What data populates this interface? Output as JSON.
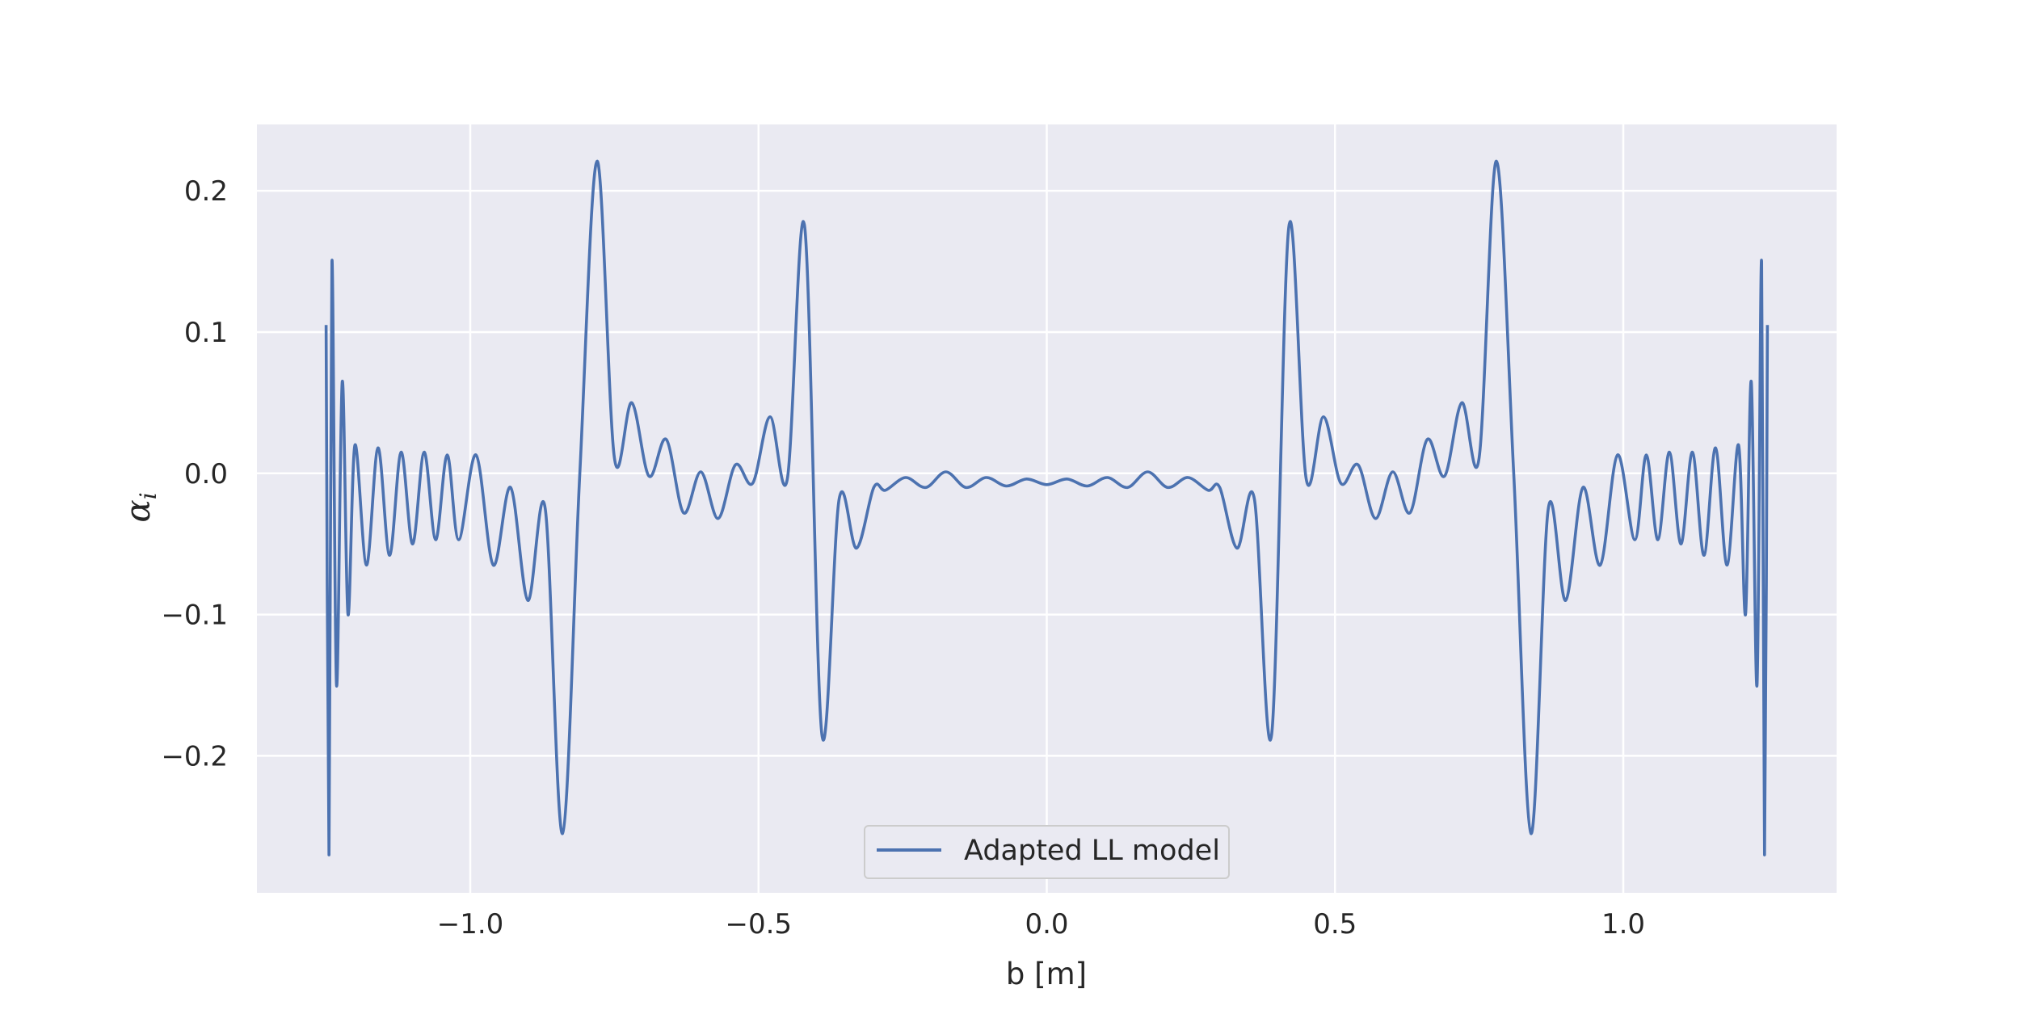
{
  "chart_data": {
    "type": "line",
    "title": "",
    "xlabel": "b [m]",
    "ylabel": "α",
    "ylabel_sub": "i",
    "xlim": [
      -1.37,
      1.37
    ],
    "ylim": [
      -0.297,
      0.247
    ],
    "xticks": [
      -1.0,
      -0.5,
      0.0,
      0.5,
      1.0
    ],
    "xtick_labels": [
      "−1.0",
      "−0.5",
      "0.0",
      "0.5",
      "1.0"
    ],
    "yticks": [
      -0.2,
      -0.1,
      0.0,
      0.1,
      0.2
    ],
    "ytick_labels": [
      "−0.2",
      "−0.1",
      "0.0",
      "0.1",
      "0.2"
    ],
    "grid": true,
    "legend_position": "bottom-center",
    "symmetric_about_zero": true,
    "series": [
      {
        "name": "Adapted LL model",
        "color": "#4c72b0",
        "x": [
          0.0,
          0.035,
          0.07,
          0.105,
          0.14,
          0.175,
          0.21,
          0.245,
          0.28,
          0.3,
          0.33,
          0.36,
          0.39,
          0.42,
          0.45,
          0.48,
          0.51,
          0.54,
          0.57,
          0.6,
          0.63,
          0.66,
          0.69,
          0.72,
          0.75,
          0.78,
          0.81,
          0.84,
          0.87,
          0.9,
          0.93,
          0.96,
          0.99,
          1.02,
          1.04,
          1.06,
          1.08,
          1.1,
          1.12,
          1.14,
          1.16,
          1.18,
          1.2,
          1.212,
          1.222,
          1.232,
          1.24,
          1.245,
          1.25
        ],
        "values": [
          -0.008,
          -0.004,
          -0.009,
          -0.003,
          -0.01,
          0.001,
          -0.01,
          -0.003,
          -0.012,
          -0.01,
          -0.053,
          -0.018,
          -0.185,
          0.175,
          -0.004,
          0.04,
          -0.007,
          0.006,
          -0.032,
          0.001,
          -0.028,
          0.024,
          -0.002,
          0.05,
          0.011,
          0.221,
          0.0,
          -0.255,
          -0.025,
          -0.09,
          -0.01,
          -0.065,
          0.013,
          -0.047,
          0.013,
          -0.047,
          0.015,
          -0.05,
          0.015,
          -0.058,
          0.018,
          -0.065,
          0.02,
          -0.1,
          0.065,
          -0.15,
          0.15,
          -0.27,
          0.105
        ]
      }
    ]
  }
}
